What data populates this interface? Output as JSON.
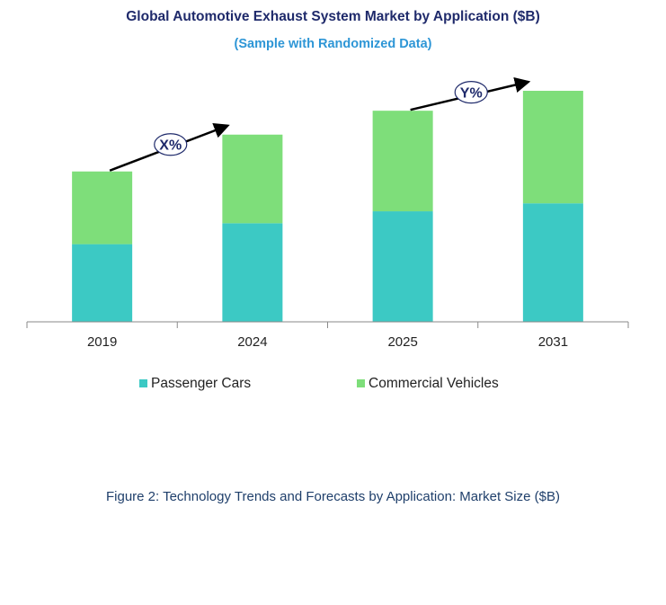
{
  "chart_data": {
    "type": "bar",
    "stacked": true,
    "title": "Global Automotive Exhaust System Market by  Application ($B)",
    "subtitle": "(Sample with Randomized Data)",
    "categories": [
      "2019",
      "2024",
      "2025",
      "2031"
    ],
    "series": [
      {
        "name": "Passenger Cars",
        "color": "#3cc9c4",
        "values": [
          7.8,
          9.9,
          11.1,
          11.9
        ]
      },
      {
        "name": "Commercial Vehicles",
        "color": "#7ede7a",
        "values": [
          7.3,
          8.9,
          10.1,
          11.3
        ]
      }
    ],
    "ylim": [
      0,
      26
    ],
    "annotations": [
      {
        "label": "X%",
        "from": "2019",
        "to": "2024"
      },
      {
        "label": "Y%",
        "from": "2025",
        "to": "2031"
      }
    ],
    "legend": "bottom"
  },
  "caption": "Figure 2: Technology  Trends  and Forecasts by Application: Market Size ($B)"
}
